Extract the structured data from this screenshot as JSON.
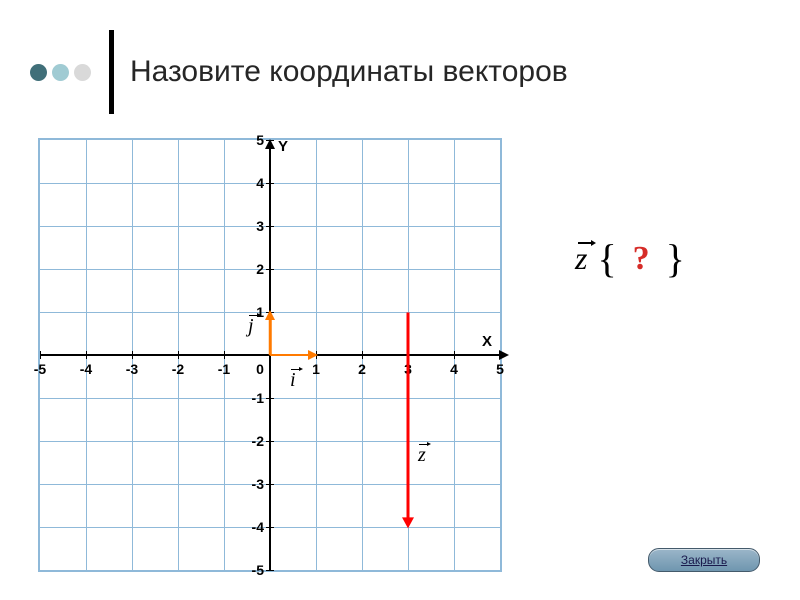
{
  "header": {
    "title": "Назовите координаты векторов",
    "dots": [
      "#406f79",
      "#a0cbd3",
      "#d9d9d9"
    ]
  },
  "plot": {
    "type": "vector-grid",
    "xlim": [
      -5,
      5
    ],
    "ylim": [
      -5,
      5
    ],
    "xlabel": "X",
    "ylabel": "Y",
    "origin_label": "0",
    "x_ticks": [
      -5,
      -4,
      -3,
      -2,
      -1,
      1,
      2,
      3,
      4,
      5
    ],
    "y_ticks": [
      -5,
      -4,
      -3,
      -2,
      -1,
      1,
      2,
      3,
      4,
      5
    ],
    "grid_color": "#8fb9d9",
    "axis_color": "#000000",
    "background_color": "#ffffff",
    "unit_vectors": {
      "i": {
        "from": [
          0,
          0
        ],
        "to": [
          1,
          0
        ],
        "color": "#ff7a00",
        "label": "i"
      },
      "j": {
        "from": [
          0,
          0
        ],
        "to": [
          0,
          1
        ],
        "color": "#ff7a00",
        "label": "j"
      }
    },
    "vectors": {
      "z": {
        "from": [
          3,
          1
        ],
        "to": [
          3,
          -4
        ],
        "color": "#ff0000",
        "label": "z",
        "width": 3
      }
    }
  },
  "question": {
    "symbol": "z",
    "mark": "?",
    "mark_color": "#d62c28",
    "brace_left": "{",
    "brace_right": "}"
  },
  "close_button": {
    "label": "Закрыть"
  }
}
